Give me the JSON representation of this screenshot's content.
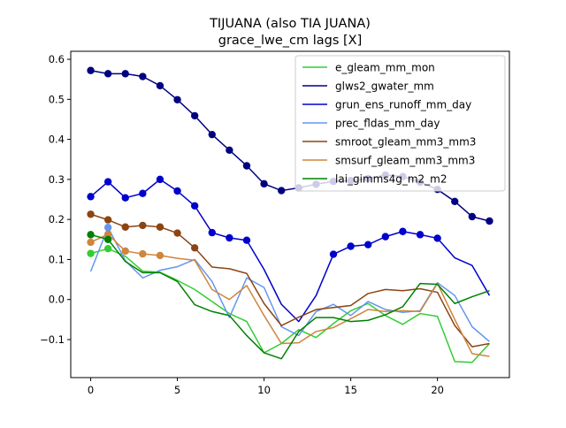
{
  "chart_data": {
    "type": "line",
    "title": "TIJUANA (also TIA JUANA)",
    "subtitle": "grace_lwe_cm lags [X]",
    "xlabel": "",
    "ylabel": "",
    "xlim": [
      -1.15,
      24.15
    ],
    "ylim": [
      -0.195,
      0.62
    ],
    "x_ticks": [
      0,
      5,
      10,
      15,
      20
    ],
    "x_tick_labels": [
      "0",
      "5",
      "10",
      "15",
      "20"
    ],
    "y_ticks": [
      -0.1,
      0.0,
      0.1,
      0.2,
      0.3,
      0.4,
      0.5,
      0.6
    ],
    "y_tick_labels": [
      "−0.1",
      "0.0",
      "0.1",
      "0.2",
      "0.3",
      "0.4",
      "0.5",
      "0.6"
    ],
    "grid": false,
    "legend_position": "upper-right",
    "x": [
      0,
      1,
      2,
      3,
      4,
      5,
      6,
      7,
      8,
      9,
      10,
      11,
      12,
      13,
      14,
      15,
      16,
      17,
      18,
      19,
      20,
      21,
      22,
      23
    ],
    "series": [
      {
        "name": "e_gleam_mm_mon",
        "color": "#32cd32",
        "values": [
          0.115,
          0.127,
          0.108,
          0.071,
          0.068,
          0.048,
          0.025,
          -0.005,
          -0.035,
          -0.055,
          -0.133,
          -0.11,
          -0.075,
          -0.095,
          -0.06,
          -0.028,
          -0.01,
          -0.04,
          -0.062,
          -0.035,
          -0.042,
          -0.155,
          -0.157,
          -0.11
        ],
        "markers": [
          0,
          1
        ]
      },
      {
        "name": "glws2_gwater_mm",
        "color": "#000080",
        "values": [
          0.572,
          0.564,
          0.564,
          0.557,
          0.534,
          0.499,
          0.459,
          0.412,
          0.373,
          0.334,
          0.289,
          0.272,
          0.279,
          0.288,
          0.295,
          0.297,
          0.302,
          0.311,
          0.307,
          0.293,
          0.275,
          0.245,
          0.207,
          0.196
        ],
        "markers": "all"
      },
      {
        "name": "grun_ens_runoff_mm_day",
        "color": "#0000cd",
        "values": [
          0.257,
          0.294,
          0.254,
          0.265,
          0.3,
          0.271,
          0.234,
          0.167,
          0.154,
          0.148,
          0.075,
          -0.012,
          -0.055,
          0.01,
          0.113,
          0.133,
          0.137,
          0.157,
          0.17,
          0.162,
          0.153,
          0.104,
          0.085,
          0.01
        ],
        "markers": [
          0,
          1,
          2,
          3,
          4,
          5,
          6,
          7,
          8,
          9,
          14,
          15,
          16,
          17,
          18,
          19,
          20
        ]
      },
      {
        "name": "prec_fldas_mm_day",
        "color": "#6495ed",
        "values": [
          0.07,
          0.18,
          0.097,
          0.054,
          0.073,
          0.082,
          0.1,
          0.045,
          -0.045,
          0.054,
          0.03,
          -0.068,
          -0.09,
          -0.03,
          -0.012,
          -0.04,
          -0.005,
          -0.025,
          -0.032,
          -0.028,
          0.042,
          0.01,
          -0.068,
          -0.105
        ],
        "markers": [
          1
        ]
      },
      {
        "name": "smroot_gleam_mm3_mm3",
        "color": "#8b4513",
        "values": [
          0.213,
          0.199,
          0.181,
          0.185,
          0.181,
          0.166,
          0.129,
          0.081,
          0.077,
          0.065,
          -0.01,
          -0.065,
          -0.044,
          -0.025,
          -0.02,
          -0.015,
          0.015,
          0.025,
          0.022,
          0.027,
          0.018,
          -0.065,
          -0.118,
          -0.11
        ],
        "markers": [
          0,
          1,
          2,
          3,
          4,
          5,
          6
        ]
      },
      {
        "name": "smsurf_gleam_mm3_mm3",
        "color": "#cd853f",
        "values": [
          0.143,
          0.163,
          0.121,
          0.114,
          0.11,
          0.103,
          0.098,
          0.025,
          0.0,
          0.035,
          -0.04,
          -0.11,
          -0.108,
          -0.08,
          -0.07,
          -0.048,
          -0.025,
          -0.03,
          -0.028,
          -0.03,
          0.04,
          -0.05,
          -0.135,
          -0.142
        ],
        "markers": [
          0,
          1,
          2,
          3,
          4
        ]
      },
      {
        "name": "lai_gimms4g_m2_m2",
        "color": "#008000",
        "values": [
          0.162,
          0.15,
          0.095,
          0.067,
          0.067,
          0.045,
          -0.013,
          -0.03,
          -0.04,
          -0.09,
          -0.133,
          -0.148,
          -0.08,
          -0.045,
          -0.045,
          -0.055,
          -0.052,
          -0.038,
          -0.018,
          0.04,
          0.038,
          -0.01,
          0.007,
          0.022
        ],
        "markers": [
          0,
          1
        ]
      }
    ]
  }
}
